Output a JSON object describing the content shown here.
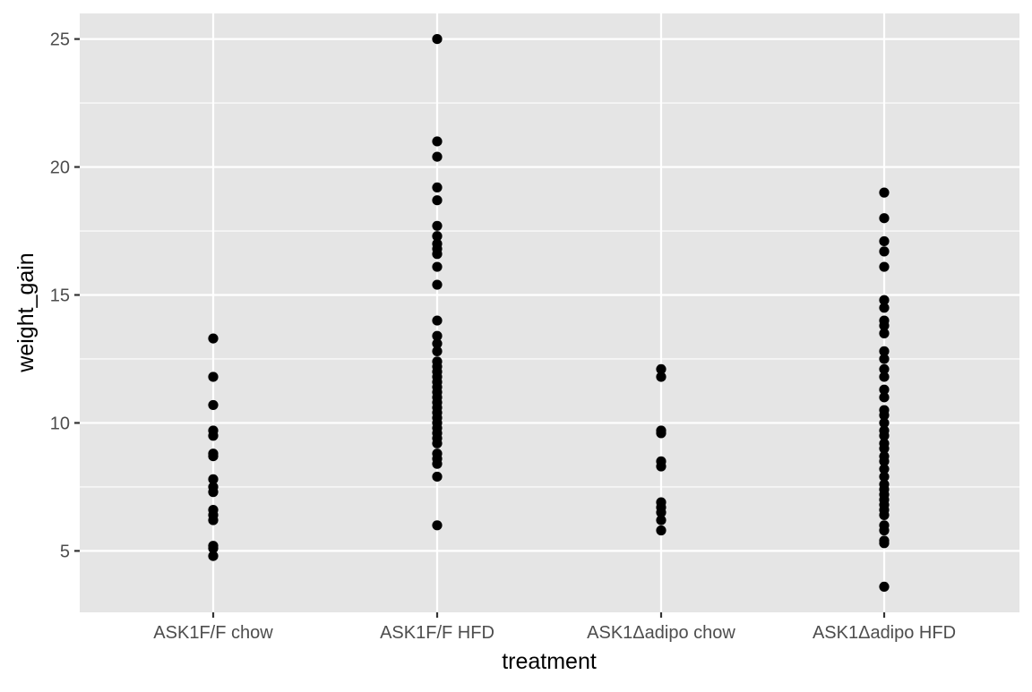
{
  "chart_data": {
    "type": "scatter",
    "title": "",
    "xlabel": "treatment",
    "ylabel": "weight_gain",
    "categories": [
      "ASK1F/F chow",
      "ASK1F/F HFD",
      "ASK1Δadipo chow",
      "ASK1Δadipo HFD"
    ],
    "ylim": [
      2.6,
      26
    ],
    "yticks": [
      5,
      10,
      15,
      20,
      25
    ],
    "y_tick_labels": [
      "5",
      "10",
      "15",
      "20",
      "25"
    ],
    "grid": true,
    "legend": "none",
    "colors": {
      "panel_background": "#e5e5e5",
      "grid": "#ffffff",
      "point": "#000000",
      "tick_text": "#4d4d4d",
      "axis_title_text": "#000000"
    },
    "series": [
      {
        "category": "ASK1F/F chow",
        "values": [
          13.3,
          11.8,
          10.7,
          9.7,
          9.5,
          8.8,
          8.7,
          7.8,
          7.5,
          7.3,
          6.6,
          6.4,
          6.2,
          5.2,
          5.1,
          4.8
        ]
      },
      {
        "category": "ASK1F/F HFD",
        "values": [
          25.0,
          21.0,
          20.4,
          19.2,
          18.7,
          17.7,
          17.3,
          17.0,
          16.8,
          16.6,
          16.1,
          15.4,
          14.0,
          13.4,
          13.1,
          12.8,
          12.4,
          12.2,
          12.0,
          11.8,
          11.6,
          11.4,
          11.2,
          11.0,
          10.8,
          10.6,
          10.4,
          10.2,
          10.0,
          9.8,
          9.6,
          9.4,
          9.2,
          8.8,
          8.6,
          8.4,
          7.9,
          6.0
        ]
      },
      {
        "category": "ASK1Δadipo chow",
        "values": [
          12.1,
          11.8,
          9.7,
          9.6,
          8.5,
          8.3,
          6.9,
          6.7,
          6.5,
          6.2,
          5.8
        ]
      },
      {
        "category": "ASK1Δadipo HFD",
        "values": [
          19.0,
          18.0,
          17.1,
          16.7,
          16.1,
          14.8,
          14.5,
          14.0,
          13.8,
          13.5,
          12.8,
          12.5,
          12.1,
          11.8,
          11.3,
          11.0,
          10.5,
          10.3,
          10.0,
          9.7,
          9.5,
          9.2,
          9.0,
          8.7,
          8.5,
          8.2,
          7.9,
          7.6,
          7.4,
          7.2,
          7.0,
          6.8,
          6.6,
          6.4,
          6.0,
          5.8,
          5.4,
          5.3,
          3.6
        ]
      }
    ]
  }
}
